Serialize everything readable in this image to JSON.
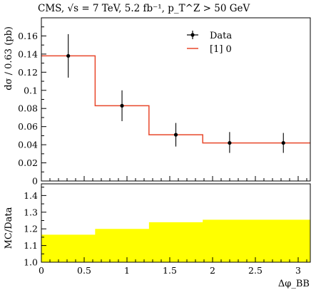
{
  "chart_data": [
    {
      "type": "line",
      "title": "CMS, √s = 7 TeV, 5.2 fb⁻¹, p_T^Z > 50 GeV",
      "ylabel": "dσ / 0.63 (pb)",
      "xlabel": "",
      "ylim": [
        0,
        0.18
      ],
      "xlim": [
        0,
        3.1416
      ],
      "y_ticks": [
        0,
        0.02,
        0.04,
        0.06,
        0.08,
        0.1,
        0.12,
        0.14,
        0.16
      ],
      "y_tick_labels": [
        "0",
        "0.02",
        "0.04",
        "0.06",
        "0.08",
        "0.1",
        "0.12",
        "0.14",
        "0.16"
      ],
      "bin_edges": [
        0,
        0.628,
        1.257,
        1.885,
        2.513,
        3.1416
      ],
      "series": [
        {
          "name": "Data",
          "x": [
            0.314,
            0.942,
            1.571,
            2.199,
            2.827
          ],
          "y": [
            0.138,
            0.083,
            0.051,
            0.042,
            0.042
          ],
          "err_low": [
            0.024,
            0.017,
            0.013,
            0.011,
            0.011
          ],
          "err_high": [
            0.024,
            0.017,
            0.013,
            0.012,
            0.011
          ],
          "color": "#000000"
        },
        {
          "name": "[1] 0",
          "type": "step",
          "values": [
            0.138,
            0.083,
            0.051,
            0.042,
            0.042
          ],
          "color": "#e8472b"
        }
      ],
      "legend": "top-right"
    },
    {
      "type": "area",
      "ylabel": "MC/Data",
      "xlabel": "Δφ_BB",
      "ylim": [
        1.0,
        1.47
      ],
      "xlim": [
        0,
        3.1416
      ],
      "y_ticks": [
        1.0,
        1.1,
        1.2,
        1.3,
        1.4
      ],
      "y_tick_labels": [
        "1.0",
        "1.1",
        "1.2",
        "1.3",
        "1.4"
      ],
      "x_ticks": [
        0,
        0.5,
        1,
        1.5,
        2,
        2.5,
        3
      ],
      "x_tick_labels": [
        "0",
        "0.5",
        "1",
        "1.5",
        "2",
        "2.5",
        "3"
      ],
      "bin_edges": [
        0,
        0.628,
        1.257,
        1.885,
        2.513,
        3.1416
      ],
      "band_low": [
        1.0,
        1.0,
        1.0,
        1.0,
        1.0
      ],
      "band_high": [
        1.165,
        1.2,
        1.24,
        1.255,
        1.255
      ],
      "color": "#ffff00"
    }
  ]
}
